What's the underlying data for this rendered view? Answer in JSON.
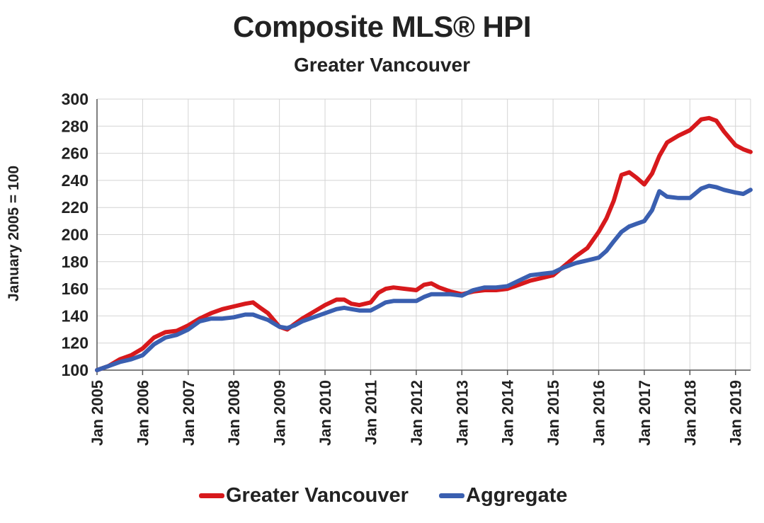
{
  "chart_data": {
    "type": "line",
    "title": "Composite MLS® HPI",
    "subtitle": "Greater Vancouver",
    "ylabel": "January 2005 = 100",
    "xlabel": "",
    "ylim": [
      100,
      300
    ],
    "yticks": [
      100,
      120,
      140,
      160,
      180,
      200,
      220,
      240,
      260,
      280,
      300
    ],
    "xlim": [
      2005.0,
      2019.33
    ],
    "xticks": [
      {
        "x": 2005,
        "label": "Jan 2005"
      },
      {
        "x": 2006,
        "label": "Jan 2006"
      },
      {
        "x": 2007,
        "label": "Jan 2007"
      },
      {
        "x": 2008,
        "label": "Jan 2008"
      },
      {
        "x": 2009,
        "label": "Jan 2009"
      },
      {
        "x": 2010,
        "label": "Jan 2010"
      },
      {
        "x": 2011,
        "label": "Jan 2011"
      },
      {
        "x": 2012,
        "label": "Jan 2012"
      },
      {
        "x": 2013,
        "label": "Jan 2013"
      },
      {
        "x": 2014,
        "label": "Jan 2014"
      },
      {
        "x": 2015,
        "label": "Jan 2015"
      },
      {
        "x": 2016,
        "label": "Jan 2016"
      },
      {
        "x": 2017,
        "label": "Jan 2017"
      },
      {
        "x": 2018,
        "label": "Jan 2018"
      },
      {
        "x": 2019,
        "label": "Jan 2019"
      }
    ],
    "grid": true,
    "legend_position": "bottom",
    "series": [
      {
        "name": "Greater Vancouver",
        "color": "#d7191c",
        "x": [
          2005.0,
          2005.25,
          2005.5,
          2005.75,
          2006.0,
          2006.25,
          2006.5,
          2006.75,
          2007.0,
          2007.25,
          2007.5,
          2007.75,
          2008.0,
          2008.25,
          2008.42,
          2008.58,
          2008.75,
          2009.0,
          2009.17,
          2009.33,
          2009.5,
          2009.75,
          2010.0,
          2010.25,
          2010.42,
          2010.58,
          2010.75,
          2011.0,
          2011.17,
          2011.33,
          2011.5,
          2011.75,
          2012.0,
          2012.17,
          2012.33,
          2012.5,
          2012.75,
          2013.0,
          2013.25,
          2013.5,
          2013.75,
          2014.0,
          2014.25,
          2014.5,
          2014.75,
          2015.0,
          2015.25,
          2015.5,
          2015.75,
          2016.0,
          2016.17,
          2016.33,
          2016.5,
          2016.67,
          2016.83,
          2017.0,
          2017.17,
          2017.33,
          2017.5,
          2017.75,
          2018.0,
          2018.25,
          2018.42,
          2018.58,
          2018.75,
          2019.0,
          2019.17,
          2019.33
        ],
        "y": [
          100,
          103,
          108,
          111,
          116,
          124,
          128,
          129,
          133,
          138,
          142,
          145,
          147,
          149,
          150,
          146,
          142,
          132,
          130,
          134,
          138,
          143,
          148,
          152,
          152,
          149,
          148,
          150,
          157,
          160,
          161,
          160,
          159,
          163,
          164,
          161,
          158,
          156,
          158,
          159,
          159,
          160,
          163,
          166,
          168,
          170,
          177,
          184,
          190,
          202,
          212,
          225,
          244,
          246,
          242,
          237,
          245,
          258,
          268,
          273,
          277,
          285,
          286,
          284,
          276,
          266,
          263,
          261
        ]
      },
      {
        "name": "Aggregate",
        "color": "#3a5fb0",
        "x": [
          2005.0,
          2005.25,
          2005.5,
          2005.75,
          2006.0,
          2006.25,
          2006.5,
          2006.75,
          2007.0,
          2007.25,
          2007.5,
          2007.75,
          2008.0,
          2008.25,
          2008.42,
          2008.58,
          2008.75,
          2009.0,
          2009.17,
          2009.33,
          2009.5,
          2009.75,
          2010.0,
          2010.25,
          2010.42,
          2010.58,
          2010.75,
          2011.0,
          2011.17,
          2011.33,
          2011.5,
          2011.75,
          2012.0,
          2012.17,
          2012.33,
          2012.5,
          2012.75,
          2013.0,
          2013.25,
          2013.5,
          2013.75,
          2014.0,
          2014.25,
          2014.5,
          2014.75,
          2015.0,
          2015.25,
          2015.5,
          2015.75,
          2016.0,
          2016.17,
          2016.33,
          2016.5,
          2016.67,
          2016.83,
          2017.0,
          2017.17,
          2017.33,
          2017.5,
          2017.75,
          2018.0,
          2018.25,
          2018.42,
          2018.58,
          2018.75,
          2019.0,
          2019.17,
          2019.33
        ],
        "y": [
          100,
          103,
          106,
          108,
          111,
          119,
          124,
          126,
          130,
          136,
          138,
          138,
          139,
          141,
          141,
          139,
          137,
          132,
          131,
          133,
          136,
          139,
          142,
          145,
          146,
          145,
          144,
          144,
          147,
          150,
          151,
          151,
          151,
          154,
          156,
          156,
          156,
          155,
          159,
          161,
          161,
          162,
          166,
          170,
          171,
          172,
          176,
          179,
          181,
          183,
          188,
          195,
          202,
          206,
          208,
          210,
          218,
          232,
          228,
          227,
          227,
          234,
          236,
          235,
          233,
          231,
          230,
          233
        ]
      }
    ]
  }
}
